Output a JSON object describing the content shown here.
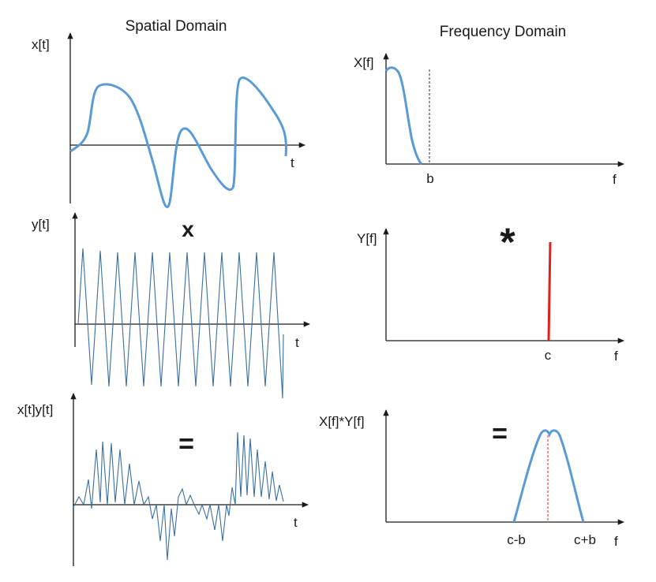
{
  "titles": {
    "spatial": "Spatial Domain",
    "frequency": "Frequency Domain"
  },
  "panels": {
    "x_t": {
      "ylabel": "x[t]",
      "xlabel": "t"
    },
    "y_t": {
      "ylabel": "y[t]",
      "xlabel": "t"
    },
    "xy_t": {
      "ylabel": "x[t]y[t]",
      "xlabel": "t"
    },
    "X_f": {
      "ylabel": "X[f]",
      "xlabel": "f",
      "tick": "b"
    },
    "Y_f": {
      "ylabel": "Y[f]",
      "xlabel": "f",
      "tick": "c"
    },
    "XY_f": {
      "ylabel": "X[f]*Y[f]",
      "xlabel": "f",
      "tick_left": "c-b",
      "tick_right": "c+b"
    }
  },
  "operators": {
    "multiply": "x",
    "convolve": "*",
    "equals_left": "=",
    "equals_right": "="
  },
  "colors": {
    "signal": "#5b9bd5",
    "sawtooth": "#3a6f9f",
    "impulse": "#e0201b",
    "dashed_marker": "#e0201b",
    "axis": "#1a1a1a"
  }
}
